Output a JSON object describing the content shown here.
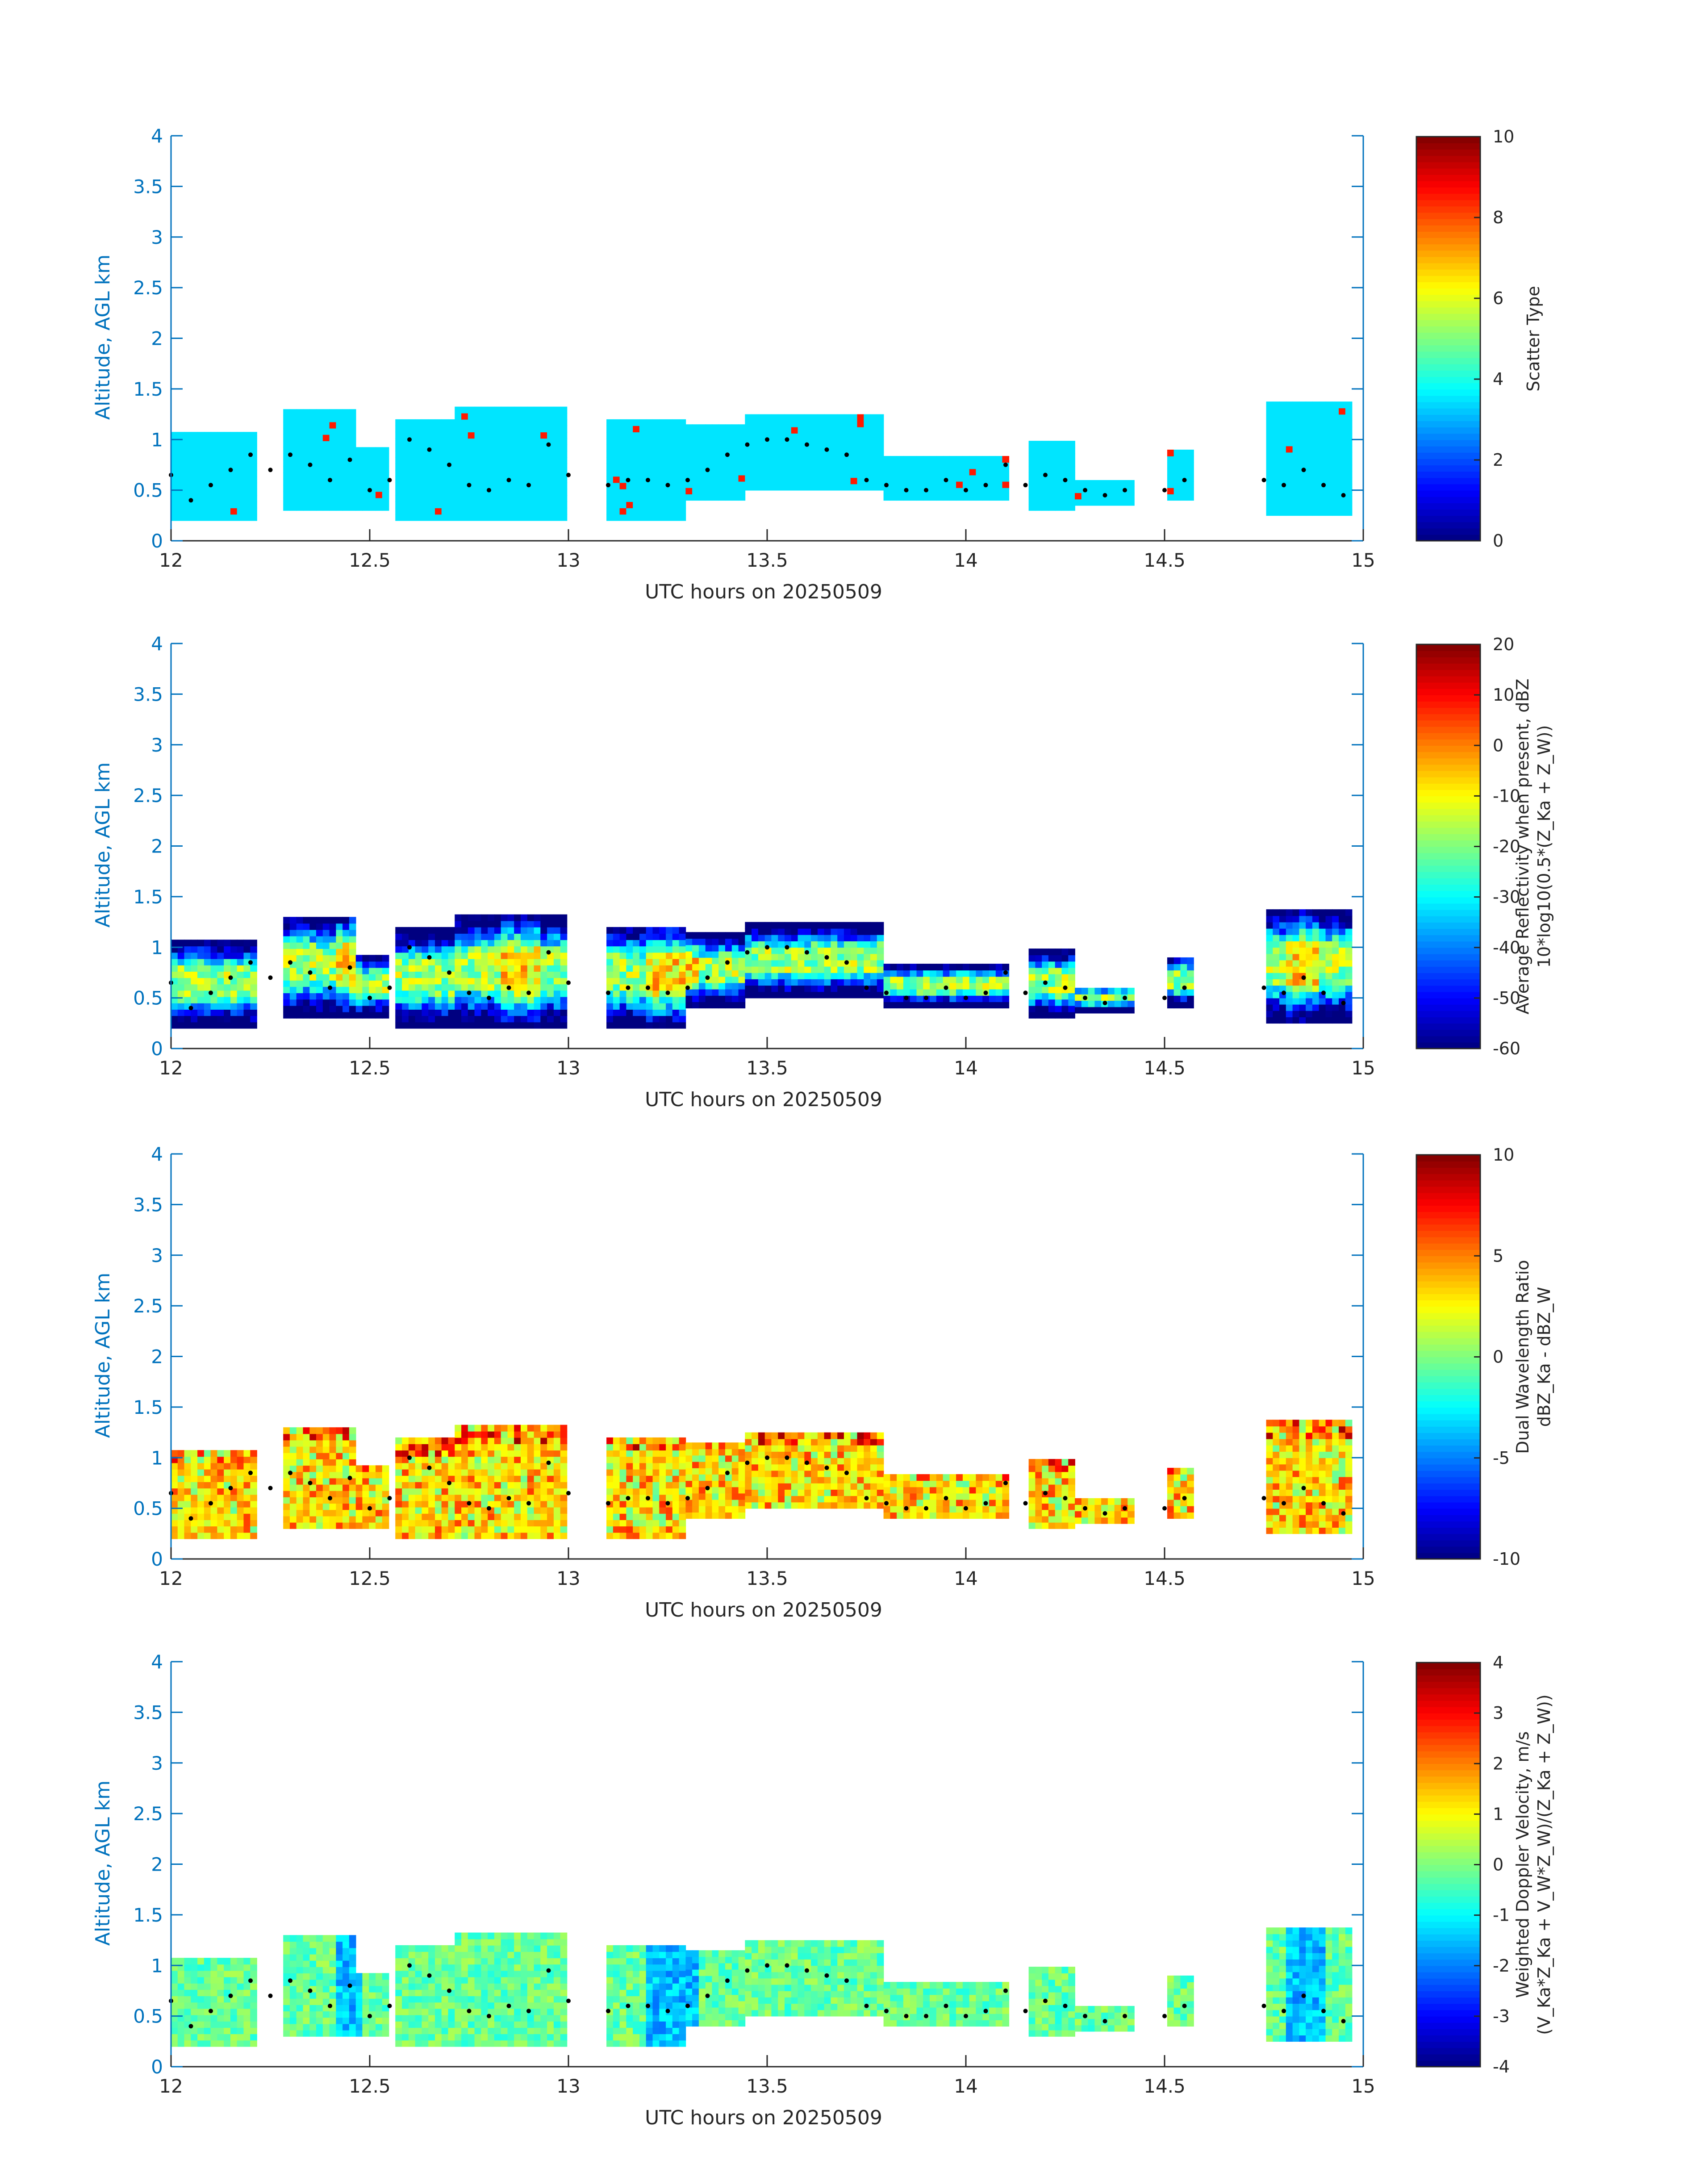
{
  "chart_data": [
    {
      "type": "heatmap",
      "xlabel": "UTC hours on 20250509",
      "ylabel": "Altitude, AGL km",
      "xlim": [
        12,
        15
      ],
      "ylim": [
        0,
        4
      ],
      "xticks": [
        "12",
        "12.5",
        "13",
        "13.5",
        "14",
        "14.5",
        "15"
      ],
      "yticks": [
        "0",
        "0.5",
        "1",
        "1.5",
        "2",
        "2.5",
        "3",
        "3.5",
        "4"
      ],
      "colorbar": {
        "label_lines": [
          "Scatter Type"
        ],
        "clim": [
          0,
          10
        ],
        "ticks": [
          "0",
          "2",
          "4",
          "6",
          "8",
          "10"
        ]
      },
      "colormap": "jet",
      "field": "scatter_type"
    },
    {
      "type": "heatmap",
      "xlabel": "UTC hours on 20250509",
      "ylabel": "Altitude, AGL km",
      "xlim": [
        12,
        15
      ],
      "ylim": [
        0,
        4
      ],
      "xticks": [
        "12",
        "12.5",
        "13",
        "13.5",
        "14",
        "14.5",
        "15"
      ],
      "yticks": [
        "0",
        "0.5",
        "1",
        "1.5",
        "2",
        "2.5",
        "3",
        "3.5",
        "4"
      ],
      "colorbar": {
        "label_lines": [
          "Average Reflectivity when present, dBZ",
          "10*log10(0.5*(Z_Ka + Z_W))"
        ],
        "clim": [
          -60,
          20
        ],
        "ticks": [
          "-60",
          "-50",
          "-40",
          "-30",
          "-20",
          "-10",
          "0",
          "10",
          "20"
        ]
      },
      "colormap": "jet",
      "field": "reflectivity"
    },
    {
      "type": "heatmap",
      "xlabel": "UTC hours on 20250509",
      "ylabel": "Altitude, AGL km",
      "xlim": [
        12,
        15
      ],
      "ylim": [
        0,
        4
      ],
      "xticks": [
        "12",
        "12.5",
        "13",
        "13.5",
        "14",
        "14.5",
        "15"
      ],
      "yticks": [
        "0",
        "0.5",
        "1",
        "1.5",
        "2",
        "2.5",
        "3",
        "3.5",
        "4"
      ],
      "colorbar": {
        "label_lines": [
          "Dual Wavelength Ratio",
          "dBZ_Ka - dBZ_W"
        ],
        "clim": [
          -10,
          10
        ],
        "ticks": [
          "-10",
          "-5",
          "0",
          "5",
          "10"
        ]
      },
      "colormap": "jet",
      "field": "dwr"
    },
    {
      "type": "heatmap",
      "xlabel": "UTC hours on 20250509",
      "ylabel": "Altitude, AGL km",
      "xlim": [
        12,
        15
      ],
      "ylim": [
        0,
        4
      ],
      "xticks": [
        "12",
        "12.5",
        "13",
        "13.5",
        "14",
        "14.5",
        "15"
      ],
      "yticks": [
        "0",
        "0.5",
        "1",
        "1.5",
        "2",
        "2.5",
        "3",
        "3.5",
        "4"
      ],
      "colorbar": {
        "label_lines": [
          "Weighted Doppler Velocity, m/s",
          "(V_Ka*Z_Ka + V_W*Z_W)/(Z_Ka + Z_W))"
        ],
        "clim": [
          -4,
          4
        ],
        "ticks": [
          "-4",
          "-3",
          "-2",
          "-1",
          "0",
          "1",
          "2",
          "3",
          "4"
        ]
      },
      "colormap": "jet",
      "field": "velocity"
    }
  ],
  "cloud_extent": [
    {
      "from": 12.0,
      "to": 12.22,
      "base": 0.2,
      "top": 1.05
    },
    {
      "from": 12.28,
      "to": 12.47,
      "base": 0.3,
      "top": 1.3
    },
    {
      "from": 12.47,
      "to": 12.55,
      "base": 0.3,
      "top": 0.9
    },
    {
      "from": 12.57,
      "to": 12.72,
      "base": 0.2,
      "top": 1.15
    },
    {
      "from": 12.72,
      "to": 13.0,
      "base": 0.2,
      "top": 1.3
    },
    {
      "from": 13.1,
      "to": 13.3,
      "base": 0.2,
      "top": 1.2
    },
    {
      "from": 13.3,
      "to": 13.45,
      "base": 0.4,
      "top": 1.1
    },
    {
      "from": 13.45,
      "to": 13.8,
      "base": 0.5,
      "top": 1.2
    },
    {
      "from": 13.8,
      "to": 14.1,
      "base": 0.4,
      "top": 0.8
    },
    {
      "from": 14.15,
      "to": 14.28,
      "base": 0.3,
      "top": 0.95
    },
    {
      "from": 14.28,
      "to": 14.42,
      "base": 0.35,
      "top": 0.6
    },
    {
      "from": 14.5,
      "to": 14.58,
      "base": 0.4,
      "top": 0.9
    },
    {
      "from": 14.75,
      "to": 14.97,
      "base": 0.25,
      "top": 1.35
    }
  ],
  "cloud_base_dots": {
    "x": [
      12.0,
      12.05,
      12.1,
      12.15,
      12.2,
      12.25,
      12.3,
      12.35,
      12.4,
      12.45,
      12.5,
      12.55,
      12.6,
      12.65,
      12.7,
      12.75,
      12.8,
      12.85,
      12.9,
      12.95,
      13.0,
      13.1,
      13.15,
      13.2,
      13.25,
      13.3,
      13.35,
      13.4,
      13.45,
      13.5,
      13.55,
      13.6,
      13.65,
      13.7,
      13.75,
      13.8,
      13.85,
      13.9,
      13.95,
      14.0,
      14.05,
      14.1,
      14.15,
      14.2,
      14.25,
      14.3,
      14.35,
      14.4,
      14.5,
      14.55,
      14.75,
      14.8,
      14.85,
      14.9,
      14.95
    ],
    "y": [
      0.65,
      0.4,
      0.55,
      0.7,
      0.85,
      0.7,
      0.85,
      0.75,
      0.6,
      0.8,
      0.5,
      0.6,
      1.0,
      0.9,
      0.75,
      0.55,
      0.5,
      0.6,
      0.55,
      0.95,
      0.65,
      0.55,
      0.6,
      0.6,
      0.55,
      0.6,
      0.7,
      0.85,
      0.95,
      1.0,
      1.0,
      0.95,
      0.9,
      0.85,
      0.6,
      0.55,
      0.5,
      0.5,
      0.6,
      0.5,
      0.55,
      0.75,
      0.55,
      0.65,
      0.6,
      0.5,
      0.45,
      0.5,
      0.5,
      0.6,
      0.6,
      0.55,
      0.7,
      0.55,
      0.45
    ]
  }
}
